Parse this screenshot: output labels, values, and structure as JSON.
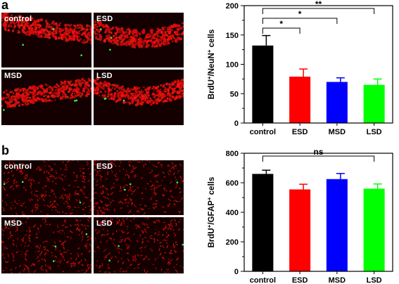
{
  "panels": [
    {
      "letter": "a",
      "images": [
        {
          "label": "control",
          "tissue": "a-control"
        },
        {
          "label": "ESD",
          "tissue": "a-esd"
        },
        {
          "label": "MSD",
          "tissue": "a-msd"
        },
        {
          "label": "LSD",
          "tissue": "a-lsd"
        }
      ]
    },
    {
      "letter": "b",
      "images": [
        {
          "label": "control",
          "tissue": "b-control"
        },
        {
          "label": "ESD",
          "tissue": "b-esd"
        },
        {
          "label": "MSD",
          "tissue": "b-msd"
        },
        {
          "label": "LSD",
          "tissue": "b-lsd"
        }
      ]
    }
  ],
  "chart_data": [
    {
      "type": "bar",
      "categories": [
        "control",
        "ESD",
        "MSD",
        "LSD"
      ],
      "values": [
        132,
        79,
        70,
        65
      ],
      "errors": [
        17,
        13,
        7,
        10
      ],
      "colors": [
        "#000000",
        "#ff0000",
        "#0000ff",
        "#00ff00"
      ],
      "ylabel_parts": [
        {
          "t": "BrdU",
          "sup": false
        },
        {
          "t": "+",
          "sup": true
        },
        {
          "t": "/NeuN",
          "sup": false
        },
        {
          "t": "+",
          "sup": true
        },
        {
          "t": " cells",
          "sup": false
        }
      ],
      "ylim": [
        0,
        200
      ],
      "yticks": [
        0,
        50,
        100,
        150,
        200
      ],
      "significance": [
        {
          "from": 0,
          "to": 1,
          "label": "*"
        },
        {
          "from": 0,
          "to": 2,
          "label": "*"
        },
        {
          "from": 0,
          "to": 3,
          "label": "**"
        }
      ]
    },
    {
      "type": "bar",
      "categories": [
        "control",
        "ESD",
        "MSD",
        "LSD"
      ],
      "values": [
        660,
        555,
        625,
        560
      ],
      "errors": [
        25,
        35,
        38,
        32
      ],
      "colors": [
        "#000000",
        "#ff0000",
        "#0000ff",
        "#00ff00"
      ],
      "ylabel_parts": [
        {
          "t": "BrdU",
          "sup": false
        },
        {
          "t": "+",
          "sup": true
        },
        {
          "t": "/GFAP",
          "sup": false
        },
        {
          "t": "+",
          "sup": true
        },
        {
          "t": " cells",
          "sup": false
        }
      ],
      "ylim": [
        0,
        800
      ],
      "yticks": [
        0,
        200,
        400,
        600,
        800
      ],
      "significance": [
        {
          "from": 0,
          "to": 3,
          "label": "ns"
        }
      ]
    }
  ]
}
